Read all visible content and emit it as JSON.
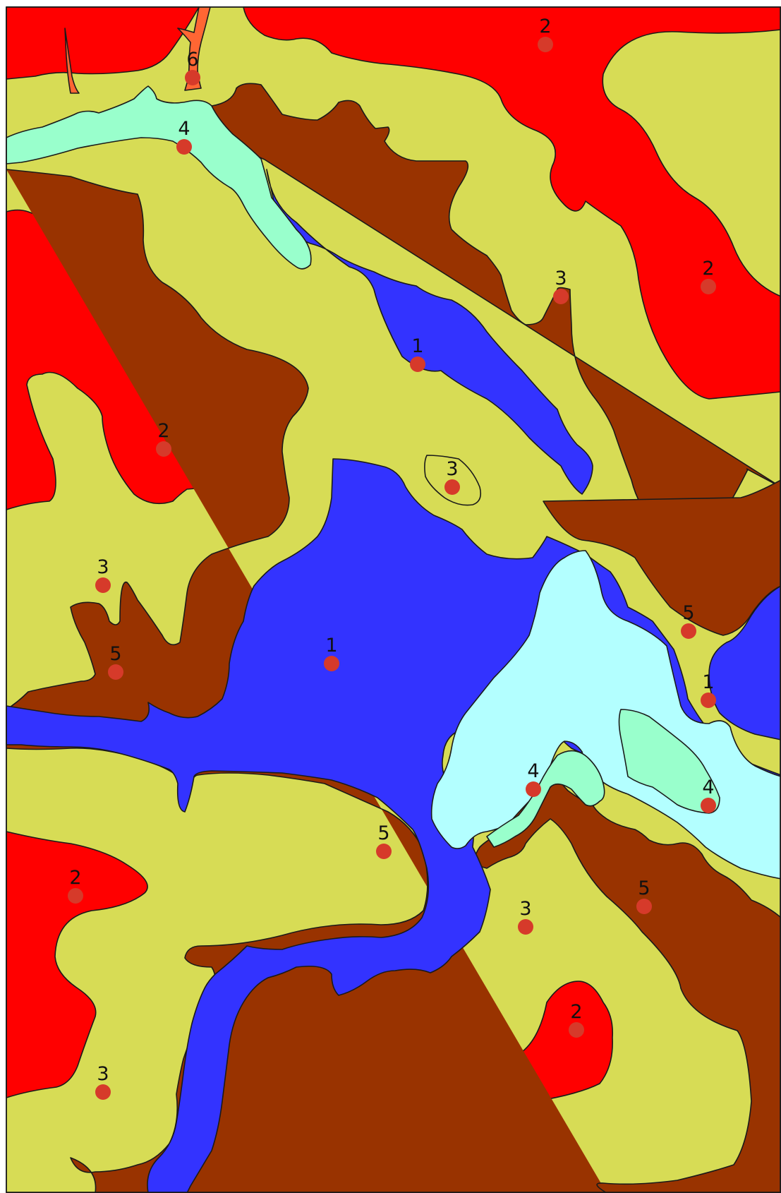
{
  "map": {
    "colors": {
      "1": "#3333ff",
      "2": "#ff0000",
      "3": "#d7dc55",
      "4": "#99ffcc",
      "5": "#993300",
      "6": "#ff6633",
      "pale_cyan": "#b3ffff",
      "marker_dot": "#d63a2a",
      "outline": "#1a1a1a"
    },
    "markers": [
      {
        "label": "2"
      },
      {
        "label": "6"
      },
      {
        "label": "4"
      },
      {
        "label": "3"
      },
      {
        "label": "2"
      },
      {
        "label": "1"
      },
      {
        "label": "2"
      },
      {
        "label": "3"
      },
      {
        "label": "3"
      },
      {
        "label": "5"
      },
      {
        "label": "5"
      },
      {
        "label": "1"
      },
      {
        "label": "1"
      },
      {
        "label": "4"
      },
      {
        "label": "4"
      },
      {
        "label": "5"
      },
      {
        "label": "2"
      },
      {
        "label": "3"
      },
      {
        "label": "5"
      },
      {
        "label": "2"
      },
      {
        "label": "3"
      }
    ]
  }
}
